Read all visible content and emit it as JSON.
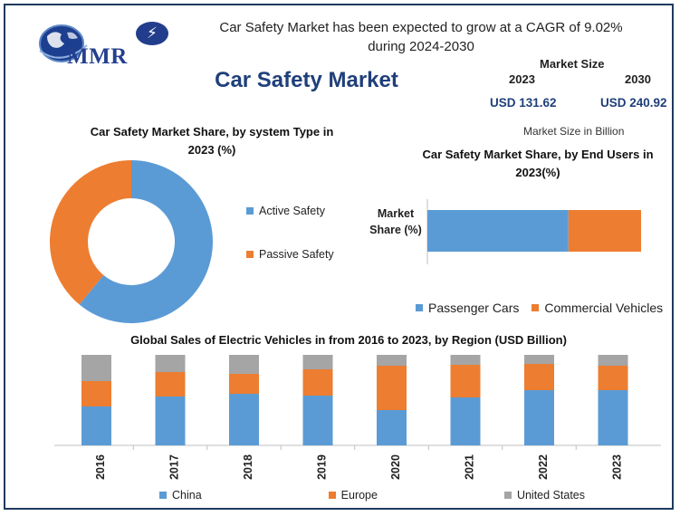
{
  "header": {
    "logo_text": "MMR",
    "headline": "Car Safety Market has been expected to grow at a CAGR of 9.02% during 2024-2030",
    "title": "Car Safety Market"
  },
  "market_size": {
    "label": "Market Size",
    "year_start": "2023",
    "year_end": "2030",
    "value_start": "USD 131.62",
    "value_end": "USD 240.92",
    "unit_note": "Market Size in Billion"
  },
  "colors": {
    "blue": "#5b9bd5",
    "orange": "#ed7d31",
    "gray": "#a5a5a5",
    "title_blue": "#1f3f7a"
  },
  "chart_data": [
    {
      "type": "pie",
      "title": "Car Safety Market Share, by system Type in 2023  (%)",
      "donut": true,
      "categories": [
        "Active Safety",
        "Passive Safety"
      ],
      "values": [
        61,
        39
      ],
      "legend": "right"
    },
    {
      "type": "bar",
      "orientation": "horizontal",
      "stacked": true,
      "title": "Car Safety Market Share, by End Users in 2023(%)",
      "categories": [
        "Market Share (%)"
      ],
      "series": [
        {
          "name": "Passenger Cars",
          "values": [
            66
          ]
        },
        {
          "name": "Commercial Vehicles",
          "values": [
            34
          ]
        }
      ],
      "xlim": [
        0,
        100
      ],
      "legend": "bottom"
    },
    {
      "type": "bar",
      "stacked": true,
      "title": "Global Sales of Electric Vehicles in from 2016 to 2023, by Region  (USD Billion)",
      "categories": [
        "2016",
        "2017",
        "2018",
        "2019",
        "2020",
        "2021",
        "2022",
        "2023"
      ],
      "series": [
        {
          "name": "China",
          "values": [
            43,
            54,
            57,
            55,
            39,
            53,
            61,
            61
          ]
        },
        {
          "name": "Europe",
          "values": [
            28,
            27,
            22,
            29,
            49,
            36,
            29,
            27
          ]
        },
        {
          "name": "United States",
          "values": [
            29,
            19,
            21,
            16,
            12,
            11,
            10,
            12
          ]
        }
      ],
      "ylim": [
        0,
        100
      ],
      "legend": "bottom"
    }
  ]
}
